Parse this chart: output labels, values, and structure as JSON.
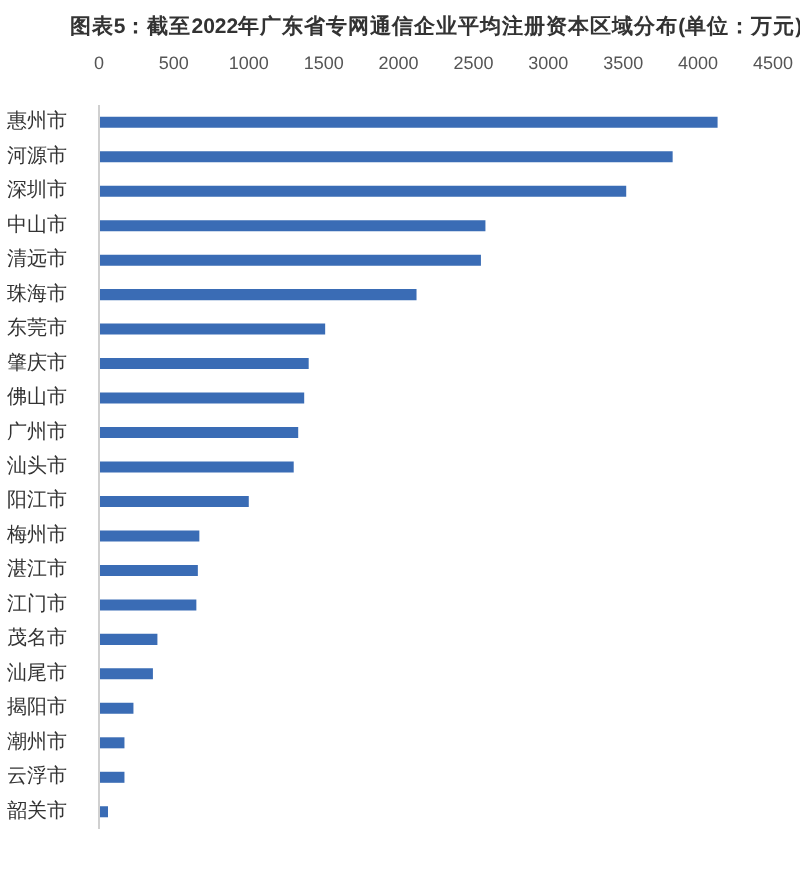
{
  "chart_data": {
    "type": "bar",
    "orientation": "horizontal",
    "title": "图表5：截至2022年广东省专网通信企业平均注册资本区域分布(单位：万元)",
    "categories": [
      "惠州市",
      "河源市",
      "深圳市",
      "中山市",
      "清远市",
      "珠海市",
      "东莞市",
      "肇庆市",
      "佛山市",
      "广州市",
      "汕头市",
      "阳江市",
      "梅州市",
      "湛江市",
      "江门市",
      "茂名市",
      "汕尾市",
      "揭阳市",
      "潮州市",
      "云浮市",
      "韶关市"
    ],
    "values": [
      4130,
      3830,
      3520,
      2580,
      2550,
      2120,
      1510,
      1400,
      1370,
      1330,
      1300,
      1000,
      670,
      660,
      650,
      390,
      360,
      230,
      170,
      170,
      60
    ],
    "color": "#3a6cb5",
    "xlim": [
      0,
      4500
    ],
    "xticks": [
      0,
      500,
      1000,
      1500,
      2000,
      2500,
      3000,
      3500,
      4000,
      4500
    ]
  }
}
